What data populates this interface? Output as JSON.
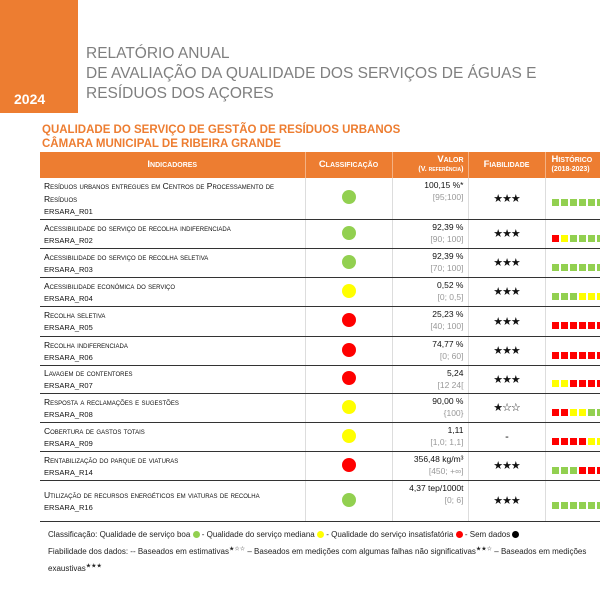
{
  "header": {
    "year": "2024",
    "title_lines": [
      "RELATÓRIO ANUAL",
      "DE AVALIAÇÃO DA QUALIDADE DOS SERVIÇOS DE ÁGUAS E",
      "RESÍDUOS DOS AÇORES"
    ]
  },
  "section": {
    "title": "QUALIDADE DO SERVIÇO DE GESTÃO DE RESÍDUOS URBANOS",
    "entity": "CÂMARA MUNICIPAL DE RIBEIRA GRANDE"
  },
  "colors": {
    "accent": "#ed7d31",
    "good": "#92d050",
    "medium": "#ffff00",
    "bad": "#ff0000",
    "nodata": "#000000"
  },
  "table": {
    "headers": {
      "indicators": "Indicadores",
      "classification": "Classificação",
      "value": "Valor",
      "value_sub": "(V. referência)",
      "reliability": "Fiabilidade",
      "history": "Histórico",
      "history_sub": "(2018-2023)"
    },
    "rows": [
      {
        "name": "Resíduos urbanos entregues em Centros de Processamento de Resíduos",
        "code": "ERSARA_R01",
        "class": "good",
        "value": "100,15 %*",
        "ref": "[95;100]",
        "rel": "★★★",
        "hist": "gggggg"
      },
      {
        "name": "Acessibilidade do serviço de recolha indiferenciada",
        "code": "ERSARA_R02",
        "class": "good",
        "value": "92,39 %",
        "ref": "[90; 100]",
        "rel": "★★★",
        "hist": "rygggg"
      },
      {
        "name": "Acessibilidade do serviço de recolha seletiva",
        "code": "ERSARA_R03",
        "class": "good",
        "value": "92,39 %",
        "ref": "[70; 100]",
        "rel": "★★★",
        "hist": "gggggg"
      },
      {
        "name": "Acessibilidade económica do serviço",
        "code": "ERSARA_R04",
        "class": "medium",
        "value": "0,52 %",
        "ref": "[0; 0,5]",
        "rel": "★★★",
        "hist": "gggyyy"
      },
      {
        "name": "Recolha seletiva",
        "code": "ERSARA_R05",
        "class": "bad",
        "value": "25,23 %",
        "ref": "[40; 100]",
        "rel": "★★★",
        "hist": "rrrrrr"
      },
      {
        "name": "Recolha indiferenciada",
        "code": "ERSARA_R06",
        "class": "bad",
        "value": "74,77 %",
        "ref": "[0; 60]",
        "rel": "★★★",
        "hist": "rrrrrr"
      },
      {
        "name": "Lavagem de contentores",
        "code": "ERSARA_R07",
        "class": "bad",
        "value": "5,24",
        "ref": "[12 24[",
        "rel": "★★★",
        "hist": "yyrrrr"
      },
      {
        "name": "Resposta a reclamações e sugestões",
        "code": "ERSARA_R08",
        "class": "medium",
        "value": "90,00 %",
        "ref": "{100}",
        "rel": "★☆☆",
        "hist": "rryygg"
      },
      {
        "name": "Cobertura de gastos totais",
        "code": "ERSARA_R09",
        "class": "medium",
        "value": "1,11",
        "ref": "[1,0; 1,1]",
        "rel": "-",
        "hist": "rrrryy"
      },
      {
        "name": "Rentabilização do parque de viaturas",
        "code": "ERSARA_R14",
        "class": "bad",
        "value": "356,48 kg/m³",
        "ref": "[450; +∞]",
        "rel": "★★★",
        "hist": "gggrrr"
      },
      {
        "name": "Utilização de recursos energéticos em viaturas de recolha",
        "code": "ERSARA_R16",
        "class": "good",
        "value": "4,37 tep/1000t",
        "ref": "[0; 6]",
        "rel": "★★★",
        "hist": "gggggg"
      }
    ]
  },
  "legend": {
    "classification": [
      "Classificação: Qualidade de serviço boa",
      "- Qualidade do serviço mediana",
      "- Qualidade do serviço insatisfatória",
      "- Sem dados"
    ],
    "reliability": [
      "Fiabilidade dos dados: -- Baseados em estimativas",
      "– Baseados em medições com algumas falhas não significativas",
      "– Baseados em medições exaustivas"
    ],
    "stars": [
      "★☆☆",
      "★★☆",
      "★★★"
    ]
  }
}
